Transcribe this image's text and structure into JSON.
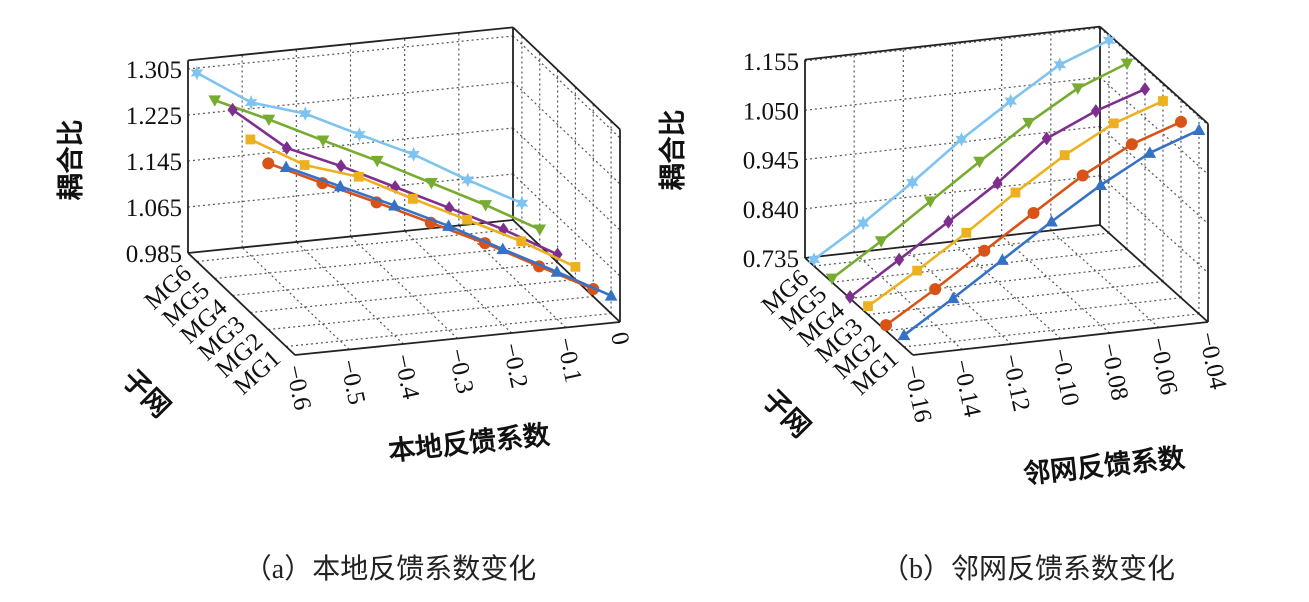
{
  "series_style": {
    "MG1": {
      "color": "#3572c6",
      "marker": "triangle-up"
    },
    "MG2": {
      "color": "#d95319",
      "marker": "circle"
    },
    "MG3": {
      "color": "#edb120",
      "marker": "square"
    },
    "MG4": {
      "color": "#7e2f8e",
      "marker": "diamond"
    },
    "MG5": {
      "color": "#77ac30",
      "marker": "triangle-down"
    },
    "MG6": {
      "color": "#7fc3f0",
      "marker": "hexagram"
    }
  },
  "chart_data": [
    {
      "type": "line3d",
      "caption": "（a）本地反馈系数变化",
      "xlabel": "本地反馈系数",
      "ylabel": "子网",
      "zlabel": "耦合比",
      "x": [
        -0.6,
        -0.5,
        -0.4,
        -0.3,
        -0.2,
        -0.1,
        0
      ],
      "x_ticks": [
        "−0.6",
        "−0.5",
        "−0.4",
        "−0.3",
        "−0.2",
        "−0.1",
        "0"
      ],
      "y_ticks": [
        "MG1",
        "MG2",
        "MG3",
        "MG4",
        "MG5",
        "MG6"
      ],
      "z_ticks": [
        "0.985",
        "1.065",
        "1.145",
        "1.225",
        "1.305"
      ],
      "z_tick_values": [
        0.985,
        1.065,
        1.145,
        1.225,
        1.305
      ],
      "xlim": [
        -0.6,
        0
      ],
      "zlim": [
        0.985,
        1.32
      ],
      "grid": true,
      "series": [
        {
          "name": "MG1",
          "values": [
            1.297,
            1.254,
            1.211,
            1.166,
            1.116,
            1.067,
            1.016
          ]
        },
        {
          "name": "MG2",
          "values": [
            1.274,
            1.23,
            1.187,
            1.142,
            1.097,
            1.047,
            0.998
          ]
        },
        {
          "name": "MG3",
          "values": [
            1.286,
            1.232,
            1.202,
            1.154,
            1.108,
            1.061,
            1.007
          ]
        },
        {
          "name": "MG4",
          "values": [
            1.308,
            1.232,
            1.191,
            1.145,
            1.099,
            1.052,
            0.999
          ]
        },
        {
          "name": "MG5",
          "values": [
            1.295,
            1.252,
            1.206,
            1.161,
            1.113,
            1.065,
            1.013
          ]
        },
        {
          "name": "MG6",
          "values": [
            1.313,
            1.252,
            1.223,
            1.177,
            1.133,
            1.079,
            1.029
          ]
        }
      ]
    },
    {
      "type": "line3d",
      "caption": "（b）邻网反馈系数变化",
      "xlabel": "邻网反馈系数",
      "ylabel": "子网",
      "zlabel": "耦合比",
      "x": [
        -0.16,
        -0.14,
        -0.12,
        -0.1,
        -0.08,
        -0.06,
        -0.04
      ],
      "x_ticks": [
        "−0.16",
        "−0.14",
        "−0.12",
        "−0.10",
        "−0.08",
        "−0.06",
        "−0.04"
      ],
      "y_ticks": [
        "MG1",
        "MG2",
        "MG3",
        "MG4",
        "MG5",
        "MG6"
      ],
      "z_ticks": [
        "0.735",
        "0.840",
        "0.945",
        "1.050",
        "1.155"
      ],
      "z_tick_values": [
        0.735,
        0.84,
        0.945,
        1.05,
        1.155
      ],
      "xlim": [
        -0.16,
        -0.04
      ],
      "zlim": [
        0.735,
        1.158
      ],
      "grid": true,
      "series": [
        {
          "name": "MG1",
          "values": [
            0.76,
            0.827,
            0.897,
            0.967,
            1.033,
            1.09,
            1.127
          ]
        },
        {
          "name": "MG2",
          "values": [
            0.747,
            0.812,
            0.882,
            0.951,
            1.019,
            1.074,
            1.11
          ]
        },
        {
          "name": "MG3",
          "values": [
            0.753,
            0.817,
            0.886,
            0.96,
            1.028,
            1.084,
            1.12
          ]
        },
        {
          "name": "MG4",
          "values": [
            0.738,
            0.806,
            0.875,
            0.946,
            1.029,
            1.076,
            1.111
          ]
        },
        {
          "name": "MG5",
          "values": [
            0.743,
            0.811,
            0.884,
            0.957,
            1.028,
            1.09,
            1.131
          ]
        },
        {
          "name": "MG6",
          "values": [
            0.749,
            0.815,
            0.89,
            0.97,
            1.04,
            1.106,
            1.146
          ]
        }
      ]
    }
  ]
}
